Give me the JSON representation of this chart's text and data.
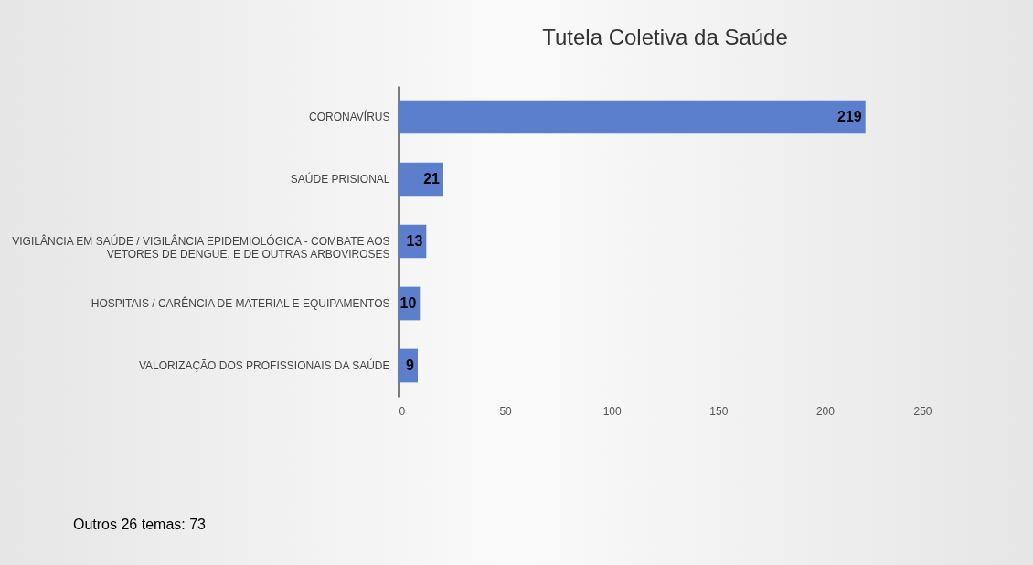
{
  "chart_data": {
    "type": "bar",
    "orientation": "horizontal",
    "title": "Tutela Coletiva da Saúde",
    "categories": [
      "CORONAVÍRUS",
      "SAÚDE PRISIONAL",
      "VIGILÂNCIA EM SAÚDE / VIGILÂNCIA EPIDEMIOLÓGICA - COMBATE AOS VETORES DE DENGUE, E DE OUTRAS ARBOVIROSES",
      "HOSPITAIS / CARÊNCIA DE MATERIAL E EQUIPAMENTOS",
      "VALORIZAÇÃO DOS PROFISSIONAIS DA SAÚDE"
    ],
    "values": [
      219,
      21,
      13,
      10,
      9
    ],
    "color": "#5b7fcc",
    "xlim": [
      0,
      250
    ],
    "xticks": [
      0,
      50,
      100,
      150,
      200,
      250
    ],
    "grid": "x",
    "data_labels": true,
    "annotations": [
      "Outros 26 temas: 73"
    ]
  }
}
